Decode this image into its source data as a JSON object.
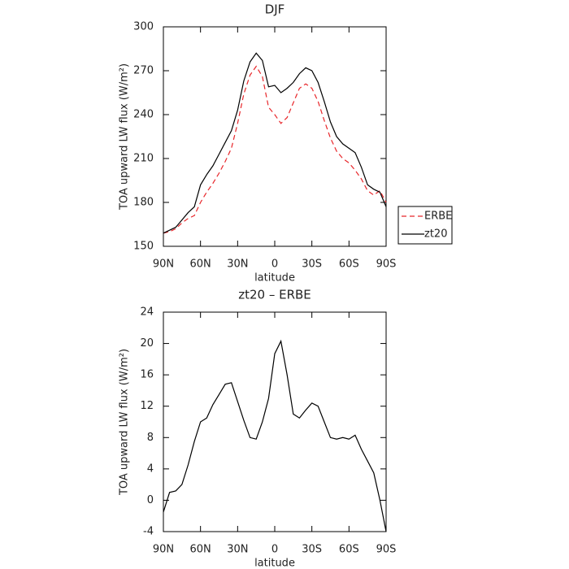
{
  "chart_data": [
    {
      "type": "line",
      "title": "DJF",
      "xlabel": "latitude",
      "ylabel": "TOA upward LW flux (W/m²)",
      "x": [
        90,
        85,
        80,
        75,
        70,
        65,
        60,
        55,
        50,
        45,
        40,
        35,
        30,
        25,
        20,
        15,
        10,
        5,
        0,
        -5,
        -10,
        -15,
        -20,
        -25,
        -30,
        -35,
        -40,
        -45,
        -50,
        -55,
        -60,
        -65,
        -70,
        -75,
        -80,
        -85,
        -90
      ],
      "xlim": [
        90,
        -90
      ],
      "xticks": [
        {
          "value": 90,
          "label": "90N"
        },
        {
          "value": 60,
          "label": "60N"
        },
        {
          "value": 30,
          "label": "30N"
        },
        0,
        {
          "value": -30,
          "label": "30S"
        },
        {
          "value": -60,
          "label": "60S"
        },
        {
          "value": -90,
          "label": "90S"
        }
      ],
      "ylim": [
        150,
        300
      ],
      "yticks": [
        150,
        180,
        210,
        240,
        270,
        300
      ],
      "legend": "right",
      "series": [
        {
          "name": "ERBE",
          "color": "#e8262a",
          "linestyle": "dashed",
          "values": [
            159,
            160,
            162,
            166,
            169,
            171,
            180,
            187,
            193,
            200,
            208,
            217,
            234,
            254,
            267,
            273,
            266,
            245,
            240,
            234,
            238,
            248,
            258,
            261,
            258,
            249,
            236,
            224,
            215,
            210,
            207,
            202,
            196,
            188,
            185,
            188,
            180
          ]
        },
        {
          "name": "zt20",
          "color": "#000000",
          "linestyle": "solid",
          "values": [
            159,
            161,
            163,
            168,
            173,
            177,
            192,
            199,
            205,
            213,
            221,
            229,
            243,
            263,
            276,
            282,
            277,
            259,
            260,
            255,
            258,
            262,
            268,
            272,
            270,
            262,
            249,
            235,
            225,
            220,
            217,
            214,
            204,
            192,
            189,
            187,
            177
          ]
        }
      ]
    },
    {
      "type": "line",
      "title": "zt20 – ERBE",
      "xlabel": "latitude",
      "ylabel": "TOA upward LW flux (W/m²)",
      "x": [
        90,
        85,
        80,
        75,
        70,
        65,
        60,
        55,
        50,
        45,
        40,
        35,
        30,
        25,
        20,
        15,
        10,
        5,
        0,
        -5,
        -10,
        -15,
        -20,
        -25,
        -30,
        -35,
        -40,
        -45,
        -50,
        -55,
        -60,
        -65,
        -70,
        -75,
        -80,
        -85,
        -90
      ],
      "xlim": [
        90,
        -90
      ],
      "xticks": [
        {
          "value": 90,
          "label": "90N"
        },
        {
          "value": 60,
          "label": "60N"
        },
        {
          "value": 30,
          "label": "30N"
        },
        0,
        {
          "value": -30,
          "label": "30S"
        },
        {
          "value": -60,
          "label": "60S"
        },
        {
          "value": -90,
          "label": "90S"
        }
      ],
      "ylim": [
        -4,
        24
      ],
      "yticks": [
        -4,
        0,
        4,
        8,
        12,
        16,
        20,
        24
      ],
      "series": [
        {
          "color": "#000000",
          "linestyle": "solid",
          "values": [
            -1.5,
            1.0,
            1.2,
            2,
            4.5,
            7.5,
            10,
            10.5,
            12.2,
            13.5,
            14.8,
            15,
            12.6,
            10.2,
            8,
            7.8,
            10,
            13,
            18.7,
            20.3,
            16,
            11,
            10.5,
            11.5,
            12.4,
            12,
            10,
            8,
            7.8,
            8,
            7.8,
            8.3,
            6.5,
            5,
            3.5,
            0,
            -4
          ]
        }
      ]
    }
  ]
}
